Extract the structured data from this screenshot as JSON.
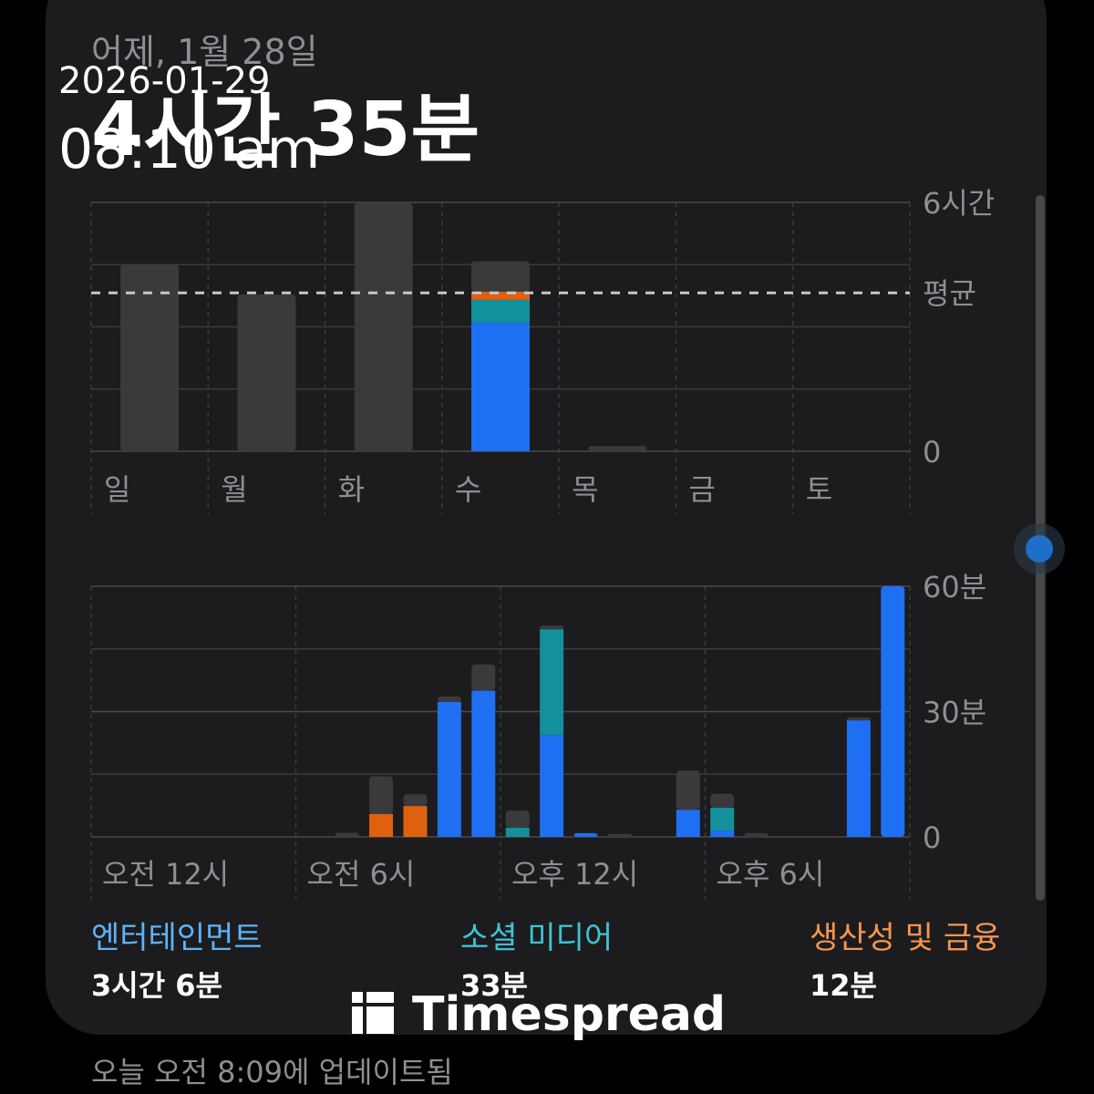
{
  "header": {
    "date": "어제, 1월 28일",
    "total": "4시간 35분"
  },
  "overlay": {
    "date": "2026-01-29",
    "time": "08:10 am"
  },
  "weekly_chart": {
    "type": "bar",
    "stacked": true,
    "categories": [
      "일",
      "월",
      "화",
      "수",
      "목",
      "금",
      "토"
    ],
    "series": [
      {
        "name": "엔터테인먼트",
        "color": "#1f6ff2",
        "values": [
          0,
          0,
          0,
          3.1,
          0,
          0,
          0
        ]
      },
      {
        "name": "소셜 미디어",
        "color": "#12909b",
        "values": [
          0,
          0,
          0,
          0.55,
          0,
          0,
          0
        ]
      },
      {
        "name": "생산성 및 금융",
        "color": "#e0610d",
        "values": [
          0,
          0,
          0,
          0.2,
          0,
          0,
          0
        ]
      },
      {
        "color": "#3a3a3c",
        "values": [
          4.5,
          3.78,
          5.98,
          0.73,
          0.13,
          0,
          0
        ]
      }
    ],
    "ylim": [
      0,
      6
    ],
    "yticks": [
      0,
      {
        "value": 6,
        "label": "6시간"
      }
    ],
    "average": {
      "value": 3.82,
      "label": "평균"
    },
    "grid": true
  },
  "hourly_chart": {
    "type": "bar",
    "stacked": true,
    "categories": [
      "오전 12시",
      null,
      null,
      null,
      null,
      null,
      "오전 6시",
      null,
      null,
      null,
      null,
      null,
      "오후 12시",
      null,
      null,
      null,
      null,
      null,
      "오후 6시",
      null,
      null,
      null,
      null,
      null
    ],
    "series": [
      {
        "color": "#1f6ff2",
        "values": [
          0,
          0,
          0,
          0,
          0,
          0,
          0,
          0,
          0,
          0,
          32.3,
          35,
          0,
          24.4,
          0.9,
          0,
          0,
          6.5,
          1.5,
          0,
          0,
          0,
          27.9,
          60
        ]
      },
      {
        "color": "#12909b",
        "values": [
          0,
          0,
          0,
          0,
          0,
          0,
          0,
          0,
          0,
          0,
          0,
          0,
          2.2,
          25.3,
          0,
          0,
          0,
          0,
          5.5,
          0,
          0,
          0,
          0,
          0
        ]
      },
      {
        "color": "#e0610d",
        "values": [
          0,
          0,
          0,
          0,
          0,
          0,
          0,
          0,
          5.5,
          7.4,
          0,
          0,
          0,
          0,
          0,
          0,
          0,
          0,
          0,
          0,
          0,
          0,
          0,
          0
        ]
      },
      {
        "color": "#3a3a3c",
        "values": [
          0,
          0,
          0,
          0,
          0,
          0,
          0,
          1,
          9,
          2.8,
          1.3,
          6.3,
          4.1,
          0.9,
          0,
          0.7,
          0,
          9.4,
          3.3,
          0.9,
          0,
          0,
          0.7,
          0
        ]
      }
    ],
    "ylim": [
      0,
      60
    ],
    "yticks": [
      0,
      {
        "value": 30,
        "label": "30분"
      },
      {
        "value": 60,
        "label": "60분"
      }
    ],
    "grid": true
  },
  "category_totals": [
    "3시간 6분",
    "33분",
    "12분"
  ],
  "category_colors": [
    "#5eb3f6",
    "#3fc3d2",
    "#f7964f"
  ],
  "footer": "오늘 오전 8:09에 업데이트됨",
  "watermark": "Timespread"
}
